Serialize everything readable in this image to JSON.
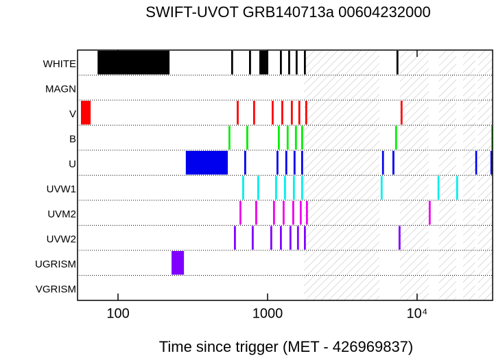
{
  "chart_data": {
    "type": "timeline",
    "title": "SWIFT-UVOT GRB140713a 00604232000",
    "xlabel": "Time since trigger (MET - 426969837)",
    "xscale": "log",
    "xlim": [
      53.6,
      32000
    ],
    "xticks": [
      100,
      1000,
      {
        "value": 10000,
        "label": "10⁴"
      }
    ],
    "hatched": [
      [
        1751,
        5600
      ],
      [
        7680,
        11970
      ],
      [
        14000,
        18250
      ],
      [
        20300,
        24500
      ],
      [
        25500,
        32000
      ]
    ],
    "series": [
      {
        "name": "WHITE",
        "color": "#000000",
        "values": [
          [
            73,
            221
          ],
          [
            571,
            588
          ],
          [
            752,
            775
          ],
          [
            881,
            1011
          ],
          [
            1210,
            1246
          ],
          [
            1374,
            1415
          ],
          [
            1542,
            1588
          ],
          [
            1751,
            1803
          ],
          [
            7280,
            7500
          ]
        ]
      },
      {
        "name": "MAGN",
        "color": "#808080",
        "values": []
      },
      {
        "name": "V",
        "color": "#ff0000",
        "values": [
          [
            56.5,
            65.6
          ],
          [
            622,
            641
          ],
          [
            801,
            825
          ],
          [
            1066,
            1098
          ],
          [
            1236,
            1273
          ],
          [
            1432,
            1475
          ],
          [
            1607,
            1655
          ],
          [
            1787,
            1841
          ],
          [
            7760,
            7990
          ]
        ]
      },
      {
        "name": "B",
        "color": "#00ee00",
        "values": [
          [
            548,
            564
          ],
          [
            721,
            743
          ],
          [
            1172,
            1207
          ],
          [
            1343,
            1383
          ],
          [
            1525,
            1571
          ],
          [
            1678,
            1728
          ],
          [
            7130,
            7340
          ],
          [
            31300,
            32000
          ]
        ]
      },
      {
        "name": "U",
        "color": "#0000ee",
        "values": [
          [
            284,
            542
          ],
          [
            698,
            719
          ],
          [
            1148,
            1182
          ],
          [
            1315,
            1354
          ],
          [
            1493,
            1538
          ],
          [
            1678,
            1728
          ],
          [
            5830,
            6000
          ],
          [
            6840,
            7050
          ],
          [
            24500,
            25200
          ],
          [
            30950,
            31800
          ]
        ]
      },
      {
        "name": "UVW1",
        "color": "#00eeee",
        "values": [
          [
            677,
            697
          ],
          [
            853,
            879
          ],
          [
            1123,
            1157
          ],
          [
            1288,
            1327
          ],
          [
            1478,
            1522
          ],
          [
            1678,
            1728
          ],
          [
            5710,
            5880
          ],
          [
            13700,
            14100
          ],
          [
            18250,
            18800
          ]
        ]
      },
      {
        "name": "UVM2",
        "color": "#ee00ee",
        "values": [
          [
            649,
            668
          ],
          [
            827,
            852
          ],
          [
            1088,
            1121
          ],
          [
            1262,
            1300
          ],
          [
            1463,
            1507
          ],
          [
            1643,
            1692
          ],
          [
            1807,
            1861
          ],
          [
            11970,
            12330
          ]
        ]
      },
      {
        "name": "UVW2",
        "color": "#8000ff",
        "values": [
          [
            596,
            614
          ],
          [
            784,
            808
          ],
          [
            1043,
            1074
          ],
          [
            1210,
            1246
          ],
          [
            1402,
            1444
          ],
          [
            1574,
            1621
          ],
          [
            1751,
            1803
          ],
          [
            7520,
            7750
          ]
        ]
      },
      {
        "name": "UGRISM",
        "color": "#8000ff",
        "values": [
          [
            228,
            276
          ]
        ]
      },
      {
        "name": "VGRISM",
        "color": "#808080",
        "values": []
      }
    ]
  }
}
